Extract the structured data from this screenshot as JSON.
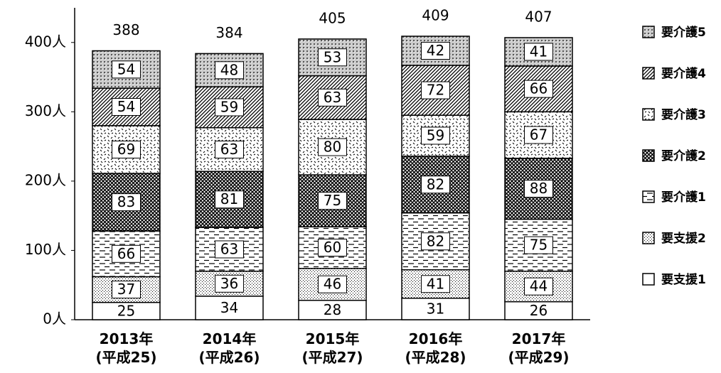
{
  "chart_data": {
    "type": "stacked_bar",
    "categories": [
      "2013年\n(平成25)",
      "2014年\n(平成26)",
      "2015年\n(平成27)",
      "2016年\n(平成28)",
      "2017年\n(平成29)"
    ],
    "totals": [
      388,
      384,
      405,
      409,
      407
    ],
    "series": [
      {
        "name": "要支援1",
        "pattern": "none",
        "color": "#000000",
        "values": [
          25,
          34,
          28,
          31,
          26
        ]
      },
      {
        "name": "要支援2",
        "pattern": "stipple",
        "color": "#000000",
        "values": [
          37,
          36,
          46,
          41,
          44
        ]
      },
      {
        "name": "要介護1",
        "pattern": "dash",
        "color": "#000000",
        "values": [
          66,
          63,
          60,
          82,
          75
        ]
      },
      {
        "name": "要介護2",
        "pattern": "crosshatch",
        "color": "#000000",
        "values": [
          83,
          81,
          75,
          82,
          88
        ]
      },
      {
        "name": "要介護3",
        "pattern": "dots",
        "color": "#000000",
        "values": [
          69,
          63,
          80,
          59,
          67
        ]
      },
      {
        "name": "要介護4",
        "pattern": "hatch",
        "color": "#000000",
        "values": [
          54,
          59,
          63,
          72,
          66
        ]
      },
      {
        "name": "要介護5",
        "pattern": "grid",
        "color": "#000000",
        "values": [
          54,
          48,
          53,
          42,
          41
        ]
      }
    ],
    "ylim": [
      0,
      450
    ],
    "yticks": [
      {
        "value": 0,
        "label": "0人"
      },
      {
        "value": 100,
        "label": "100人"
      },
      {
        "value": 200,
        "label": "200人"
      },
      {
        "value": 300,
        "label": "300人"
      },
      {
        "value": 400,
        "label": "400人"
      }
    ],
    "legend": "right"
  }
}
